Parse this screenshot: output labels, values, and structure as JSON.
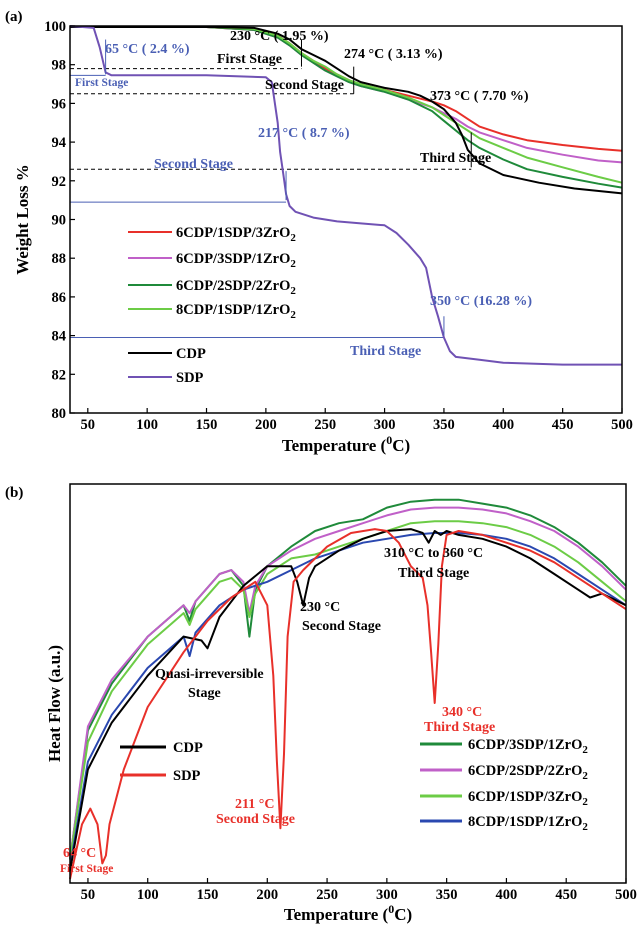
{
  "chart_data": [
    {
      "panel_label": "(a)",
      "type": "line",
      "xlabel": "Temperature (0C)",
      "xlabel_parts": [
        "Temperature (",
        "0",
        "C)"
      ],
      "ylabel": "Weight Loss %",
      "xlim": [
        35,
        500
      ],
      "ylim": [
        80,
        100
      ],
      "xticks": [
        50,
        100,
        150,
        200,
        250,
        300,
        350,
        400,
        450,
        500
      ],
      "yticks": [
        80,
        82,
        84,
        86,
        88,
        90,
        92,
        94,
        96,
        98,
        100
      ],
      "grid": false,
      "legend_placement": "center-left",
      "series": [
        {
          "name": "6CDP/1SDP/3ZrO2",
          "color": "#e8302a",
          "x": [
            35,
            150,
            190,
            210,
            220,
            230,
            240,
            250,
            260,
            270,
            280,
            300,
            320,
            340,
            350,
            360,
            370,
            380,
            400,
            420,
            450,
            480,
            500
          ],
          "y": [
            99.95,
            99.95,
            99.8,
            99.5,
            99.1,
            98.6,
            98.2,
            97.8,
            97.5,
            97.2,
            96.9,
            96.7,
            96.4,
            96.1,
            95.9,
            95.6,
            95.2,
            94.8,
            94.4,
            94.1,
            93.85,
            93.65,
            93.55
          ]
        },
        {
          "name": "6CDP/3SDP/1ZrO2",
          "color": "#c060c8",
          "x": [
            35,
            150,
            190,
            210,
            220,
            230,
            240,
            250,
            260,
            270,
            280,
            300,
            320,
            340,
            350,
            360,
            370,
            380,
            400,
            420,
            450,
            480,
            500
          ],
          "y": [
            99.95,
            99.95,
            99.8,
            99.4,
            99.0,
            98.5,
            98.1,
            97.7,
            97.4,
            97.1,
            96.9,
            96.6,
            96.2,
            95.8,
            95.5,
            95.2,
            94.8,
            94.5,
            94.1,
            93.7,
            93.35,
            93.05,
            92.95
          ]
        },
        {
          "name": "6CDP/2SDP/2ZrO2",
          "color": "#1f8a3a",
          "x": [
            35,
            150,
            190,
            210,
            220,
            230,
            240,
            250,
            260,
            270,
            280,
            300,
            320,
            340,
            350,
            360,
            370,
            380,
            400,
            420,
            450,
            480,
            500
          ],
          "y": [
            99.95,
            99.95,
            99.8,
            99.4,
            99.0,
            98.5,
            98.1,
            97.7,
            97.4,
            97.1,
            96.9,
            96.6,
            96.2,
            95.6,
            95.1,
            94.6,
            94.1,
            93.7,
            93.1,
            92.6,
            92.2,
            91.85,
            91.65
          ]
        },
        {
          "name": "8CDP/1SDP/1ZrO2",
          "color": "#6ccc46",
          "x": [
            35,
            150,
            190,
            210,
            220,
            230,
            240,
            250,
            260,
            270,
            280,
            300,
            320,
            340,
            350,
            360,
            370,
            380,
            400,
            420,
            450,
            480,
            500
          ],
          "y": [
            99.95,
            99.95,
            99.85,
            99.5,
            99.1,
            98.6,
            98.2,
            97.9,
            97.5,
            97.2,
            97.0,
            96.7,
            96.3,
            95.8,
            95.4,
            95.0,
            94.6,
            94.2,
            93.7,
            93.2,
            92.7,
            92.2,
            91.9
          ]
        },
        {
          "name": "CDP",
          "color": "#000000",
          "x": [
            35,
            150,
            190,
            210,
            220,
            230,
            240,
            250,
            260,
            270,
            280,
            300,
            320,
            330,
            340,
            350,
            360,
            365,
            370,
            380,
            400,
            430,
            460,
            500
          ],
          "y": [
            99.95,
            99.95,
            99.9,
            99.6,
            99.3,
            98.8,
            98.5,
            98.2,
            97.8,
            97.4,
            97.1,
            96.8,
            96.6,
            96.4,
            96.1,
            95.7,
            95.0,
            94.4,
            93.6,
            92.9,
            92.3,
            91.9,
            91.6,
            91.35
          ]
        },
        {
          "name": "SDP",
          "color": "#7052b4",
          "x": [
            35,
            55,
            60,
            65,
            70,
            100,
            150,
            200,
            205,
            210,
            212,
            215,
            217,
            220,
            225,
            240,
            260,
            280,
            300,
            310,
            320,
            330,
            335,
            340,
            345,
            350,
            355,
            360,
            380,
            400,
            450,
            500
          ],
          "y": [
            100,
            99.9,
            98.9,
            97.6,
            97.45,
            97.45,
            97.45,
            97.35,
            97.1,
            95.0,
            93.5,
            92.2,
            91.3,
            90.7,
            90.4,
            90.1,
            89.9,
            89.8,
            89.7,
            89.3,
            88.7,
            88.0,
            87.5,
            86.0,
            85.0,
            83.9,
            83.2,
            82.9,
            82.75,
            82.6,
            82.5,
            82.5
          ]
        }
      ],
      "annotations": [
        {
          "text": "65 °C ( 2.4 %)",
          "color": "#4a5fb4"
        },
        {
          "text": "First Stage",
          "color": "#4a5fb4"
        },
        {
          "text": "230 °C ( 1.95 %)",
          "color": "#000000"
        },
        {
          "text": "First Stage",
          "color": "#000000"
        },
        {
          "text": "274 °C ( 3.13 %)",
          "color": "#000000"
        },
        {
          "text": "Second Stage",
          "color": "#000000"
        },
        {
          "text": "373 °C ( 7.70 %)",
          "color": "#000000"
        },
        {
          "text": "Third Stage",
          "color": "#000000"
        },
        {
          "text": "217 °C ( 8.7 %)",
          "color": "#4a5fb4"
        },
        {
          "text": "Second Stage",
          "color": "#4a5fb4"
        },
        {
          "text": "350 °C (16.28 %)",
          "color": "#4a5fb4"
        },
        {
          "text": "Third Stage",
          "color": "#4a5fb4"
        }
      ],
      "legend": [
        {
          "label": "6CDP/1SDP/3ZrO",
          "sub": "2",
          "color": "#e8302a"
        },
        {
          "label": "6CDP/3SDP/1ZrO",
          "sub": "2",
          "color": "#c060c8"
        },
        {
          "label": "6CDP/2SDP/2ZrO",
          "sub": "2",
          "color": "#1f8a3a"
        },
        {
          "label": "8CDP/1SDP/1ZrO",
          "sub": "2",
          "color": "#6ccc46"
        },
        {
          "label": "CDP",
          "sub": "",
          "color": "#000000"
        },
        {
          "label": "SDP",
          "sub": "",
          "color": "#7052b4"
        }
      ]
    },
    {
      "panel_label": "(b)",
      "type": "line",
      "xlabel": "Temperature (0C)",
      "xlabel_parts": [
        "Temperature (",
        "0",
        "C)"
      ],
      "ylabel": "Heat Flow (a.u.)",
      "xlim": [
        35,
        500
      ],
      "ylim": [
        0,
        100
      ],
      "xticks": [
        50,
        100,
        150,
        200,
        250,
        300,
        350,
        400,
        450,
        500
      ],
      "yticks": [],
      "grid": false,
      "legend_placement": "bottom",
      "series": [
        {
          "name": "6CDP/3SDP/1ZrO2",
          "color": "#1f8a3a",
          "x": [
            35,
            50,
            70,
            100,
            130,
            135,
            140,
            160,
            170,
            180,
            185,
            190,
            200,
            220,
            240,
            260,
            280,
            300,
            320,
            340,
            360,
            380,
            400,
            420,
            440,
            460,
            480,
            500
          ],
          "y": [
            5,
            38,
            50,
            62,
            70,
            66,
            71,
            78,
            79,
            75,
            62,
            74,
            80,
            85,
            89,
            91,
            92,
            95,
            96.5,
            97,
            97,
            96,
            95,
            93,
            90,
            86,
            81,
            75
          ]
        },
        {
          "name": "6CDP/2SDP/2ZrO2",
          "color": "#c060c8",
          "x": [
            35,
            50,
            70,
            100,
            130,
            135,
            140,
            160,
            170,
            180,
            185,
            190,
            200,
            220,
            240,
            260,
            280,
            300,
            320,
            340,
            360,
            380,
            400,
            420,
            440,
            460,
            480,
            500
          ],
          "y": [
            5,
            39,
            51,
            62,
            70,
            68,
            71,
            78,
            79,
            76,
            68,
            75,
            80,
            84,
            87,
            89,
            91,
            93,
            94.5,
            95,
            95,
            94.5,
            93.5,
            91.5,
            89,
            85,
            80,
            74
          ]
        },
        {
          "name": "6CDP/1SDP/3ZrO2",
          "color": "#6ccc46",
          "x": [
            35,
            50,
            70,
            100,
            130,
            135,
            140,
            160,
            170,
            180,
            185,
            190,
            200,
            220,
            240,
            260,
            280,
            300,
            320,
            340,
            360,
            380,
            400,
            420,
            440,
            460,
            480,
            500
          ],
          "y": [
            5,
            35,
            48,
            60,
            68,
            65,
            69,
            76,
            77,
            74,
            67,
            73,
            78,
            82,
            83,
            85,
            87,
            89,
            91,
            91.5,
            91.5,
            91,
            90,
            88,
            85,
            81,
            76,
            71
          ]
        },
        {
          "name": "8CDP/1SDP/1ZrO2",
          "color": "#2a48b0",
          "x": [
            35,
            50,
            70,
            100,
            130,
            135,
            140,
            160,
            180,
            200,
            220,
            240,
            260,
            280,
            300,
            320,
            340,
            360,
            380,
            400,
            420,
            440,
            460,
            480,
            500
          ],
          "y": [
            3,
            30,
            42,
            54,
            62,
            57,
            63,
            70,
            74,
            76,
            79,
            82,
            84,
            86,
            87,
            88,
            88.5,
            88.5,
            88,
            87,
            85,
            82,
            78,
            74,
            70
          ]
        },
        {
          "name": "CDP",
          "color": "#000000",
          "x": [
            35,
            50,
            70,
            100,
            130,
            145,
            150,
            160,
            180,
            200,
            220,
            225,
            230,
            235,
            240,
            260,
            280,
            300,
            320,
            330,
            335,
            340,
            345,
            350,
            360,
            380,
            400,
            420,
            440,
            460,
            470,
            480,
            500
          ],
          "y": [
            2,
            28,
            40,
            52,
            62,
            61,
            59,
            67,
            75,
            80,
            80,
            76,
            70,
            77,
            80,
            84,
            87,
            89,
            89.5,
            88.5,
            86,
            89,
            88,
            89,
            88,
            87,
            85,
            82,
            78,
            74,
            72,
            73,
            70
          ]
        },
        {
          "name": "SDP",
          "color": "#e8302a",
          "x": [
            35,
            45,
            52,
            58,
            62,
            65,
            68,
            80,
            100,
            130,
            150,
            170,
            190,
            200,
            205,
            208,
            211,
            214,
            217,
            222,
            230,
            250,
            270,
            290,
            300,
            310,
            320,
            330,
            334,
            337,
            340,
            343,
            346,
            350,
            360,
            380,
            400,
            420,
            440,
            460,
            480,
            500
          ],
          "y": [
            0,
            14,
            18,
            14,
            4,
            6,
            14,
            28,
            44,
            58,
            66,
            72,
            76,
            70,
            52,
            30,
            13,
            32,
            62,
            76,
            79,
            85,
            88.5,
            89.5,
            89,
            86,
            80,
            77,
            70,
            58,
            45,
            60,
            80,
            88,
            89,
            88,
            86,
            84,
            81,
            77,
            73,
            69
          ]
        }
      ],
      "annotations": [
        {
          "text": "64 °C",
          "color": "#e8302a"
        },
        {
          "text": "First Stage",
          "color": "#e8302a"
        },
        {
          "text": "211 °C",
          "color": "#e8302a"
        },
        {
          "text": "Second Stage",
          "color": "#e8302a"
        },
        {
          "text": "340 °C",
          "color": "#e8302a"
        },
        {
          "text": "Third Stage",
          "color": "#e8302a"
        },
        {
          "text": "Quasi-irreversible",
          "color": "#000000"
        },
        {
          "text": "Stage",
          "color": "#000000"
        },
        {
          "text": "230 °C",
          "color": "#000000"
        },
        {
          "text": "Second Stage",
          "color": "#000000"
        },
        {
          "text": "310 °C to 360 °C",
          "color": "#000000"
        },
        {
          "text": "Third Stage",
          "color": "#000000"
        }
      ],
      "legend_left": [
        {
          "label": "CDP",
          "sub": "",
          "color": "#000000"
        },
        {
          "label": "SDP",
          "sub": "",
          "color": "#e8302a"
        }
      ],
      "legend_right": [
        {
          "label": "6CDP/3SDP/1ZrO",
          "sub": "2",
          "color": "#1f8a3a"
        },
        {
          "label": "6CDP/2SDP/2ZrO",
          "sub": "2",
          "color": "#c060c8"
        },
        {
          "label": "6CDP/1SDP/3ZrO",
          "sub": "2",
          "color": "#6ccc46"
        },
        {
          "label": "8CDP/1SDP/1ZrO",
          "sub": "2",
          "color": "#2a48b0"
        }
      ]
    }
  ]
}
